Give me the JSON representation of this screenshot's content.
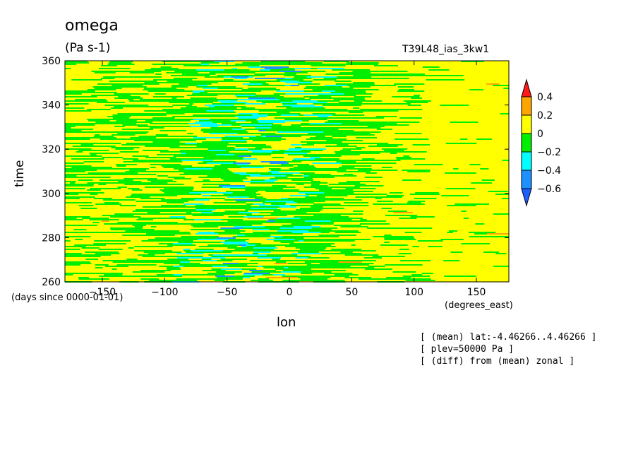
{
  "title": "omega",
  "units": "(Pa s-1)",
  "run_name": "T39L48_ias_3kw1",
  "notes": [
    "[ (mean) lat:-4.46266..4.46266 ]",
    "[ plev=50000 Pa ]",
    "[ (diff) from (mean) zonal ]"
  ],
  "chart_data": {
    "type": "heatmap",
    "xlabel": "lon",
    "xlabel_unit": "(degrees_east)",
    "ylabel": "time",
    "ylabel_unit": "(days since 0000-01-01)",
    "xlim": [
      -180,
      176
    ],
    "ylim": [
      260,
      360
    ],
    "x_ticks": [
      -150,
      -100,
      -50,
      0,
      50,
      100,
      150
    ],
    "y_ticks": [
      260,
      280,
      300,
      320,
      340,
      360
    ],
    "colorbar": {
      "levels": [
        "0.4",
        "0.2",
        "0",
        "-0.2",
        "-0.4",
        "-0.6"
      ],
      "bins": [
        {
          "range": ">0.4",
          "color": "#ff1a1a"
        },
        {
          "range": "0.2..0.4",
          "color": "#ffa500"
        },
        {
          "range": "0..0.2",
          "color": "#ffff00"
        },
        {
          "range": "-0.2..0",
          "color": "#00ee00"
        },
        {
          "range": "-0.4..-0.2",
          "color": "#00ffff"
        },
        {
          "range": "-0.6..-0.4",
          "color": "#1e90ff"
        },
        {
          "range": "<-0.6",
          "color": "#1e5fff"
        }
      ]
    },
    "pattern_description_regions": [
      {
        "lon_range": [
          -180,
          -60
        ],
        "dominant": "0..0.2 with -0.2..0 streaks"
      },
      {
        "lon_range": [
          -60,
          60
        ],
        "dominant": "-0.2..0 with -0.4..-0.2 patches"
      },
      {
        "lon_range": [
          60,
          176
        ],
        "dominant": "0..0.2"
      }
    ]
  }
}
